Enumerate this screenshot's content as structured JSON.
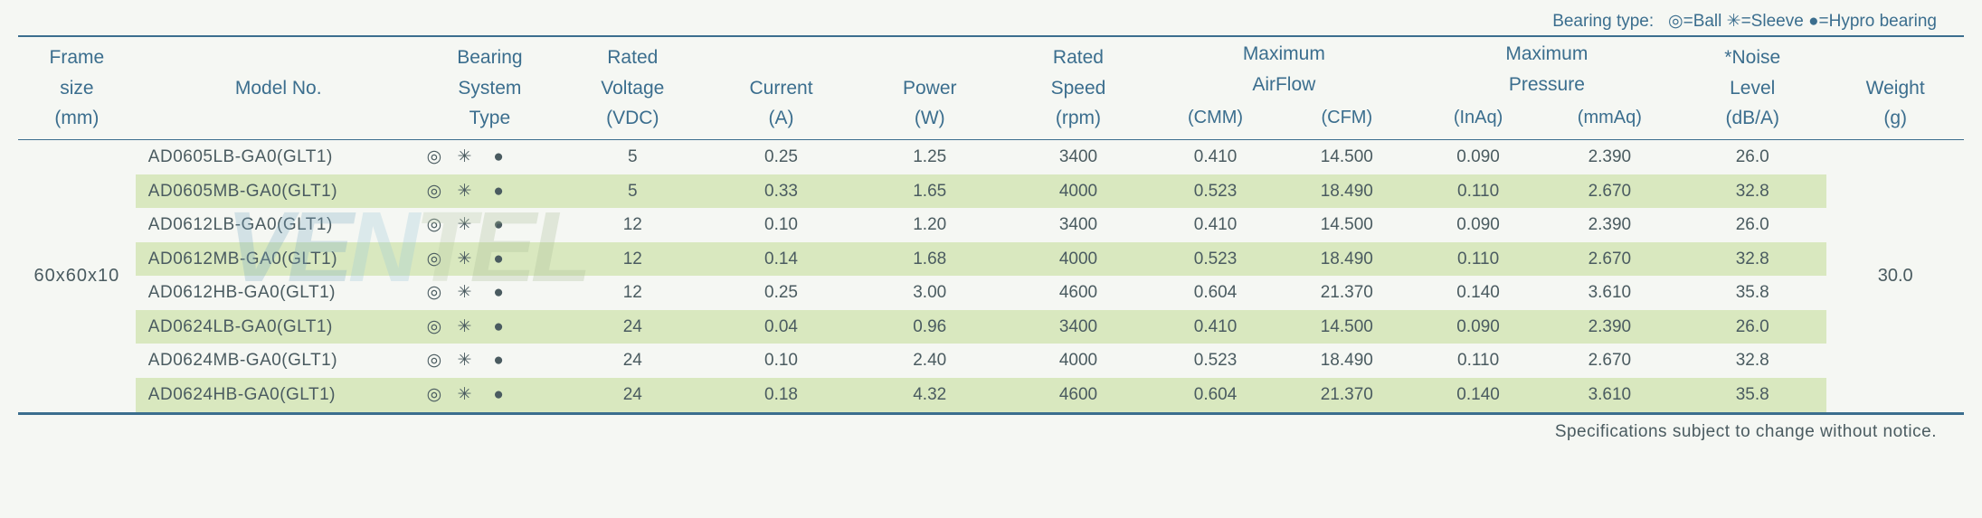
{
  "legend": {
    "prefix": "Bearing type:",
    "items": [
      {
        "symbol": "◎",
        "label": "=Ball"
      },
      {
        "symbol": "✳",
        "label": "=Sleeve"
      },
      {
        "symbol": "●",
        "label": "=Hypro bearing"
      }
    ],
    "color": "#3b6e8e"
  },
  "header": {
    "frame": {
      "l1": "Frame",
      "l2": "size",
      "l3": "(mm)"
    },
    "model": {
      "l1": "Model No."
    },
    "bearing": {
      "l1": "Bearing",
      "l2": "System",
      "l3": "Type"
    },
    "voltage": {
      "l1": "Rated",
      "l2": "Voltage",
      "l3": "(VDC)"
    },
    "current": {
      "l2": "Current",
      "l3": "(A)"
    },
    "power": {
      "l2": "Power",
      "l3": "(W)"
    },
    "speed": {
      "l1": "Rated",
      "l2": "Speed",
      "l3": "(rpm)"
    },
    "airflow": {
      "l1": "Maximum",
      "l2": "AirFlow",
      "sub1": "(CMM)",
      "sub2": "(CFM)"
    },
    "pressure": {
      "l1": "Maximum",
      "l2": "Pressure",
      "sub1": "(InAq)",
      "sub2": "(mmAq)"
    },
    "noise": {
      "l1": "*Noise",
      "l2": "Level",
      "l3": "(dB/A)"
    },
    "weight": {
      "l2": "Weight",
      "l3": "(g)"
    }
  },
  "frame_size": "60x60x10",
  "weight_value": "30.0",
  "bearing_symbols": {
    "a": "◎",
    "b": "✳",
    "c": "●"
  },
  "rows": [
    {
      "model": "AD0605LB-GA0(GLT1)",
      "volt": "5",
      "curr": "0.25",
      "power": "1.25",
      "speed": "3400",
      "cmm": "0.410",
      "cfm": "14.500",
      "inaq": "0.090",
      "mmaq": "2.390",
      "noise": "26.0"
    },
    {
      "model": "AD0605MB-GA0(GLT1)",
      "volt": "5",
      "curr": "0.33",
      "power": "1.65",
      "speed": "4000",
      "cmm": "0.523",
      "cfm": "18.490",
      "inaq": "0.110",
      "mmaq": "2.670",
      "noise": "32.8"
    },
    {
      "model": "AD0612LB-GA0(GLT1)",
      "volt": "12",
      "curr": "0.10",
      "power": "1.20",
      "speed": "3400",
      "cmm": "0.410",
      "cfm": "14.500",
      "inaq": "0.090",
      "mmaq": "2.390",
      "noise": "26.0"
    },
    {
      "model": "AD0612MB-GA0(GLT1)",
      "volt": "12",
      "curr": "0.14",
      "power": "1.68",
      "speed": "4000",
      "cmm": "0.523",
      "cfm": "18.490",
      "inaq": "0.110",
      "mmaq": "2.670",
      "noise": "32.8"
    },
    {
      "model": "AD0612HB-GA0(GLT1)",
      "volt": "12",
      "curr": "0.25",
      "power": "3.00",
      "speed": "4600",
      "cmm": "0.604",
      "cfm": "21.370",
      "inaq": "0.140",
      "mmaq": "3.610",
      "noise": "35.8"
    },
    {
      "model": "AD0624LB-GA0(GLT1)",
      "volt": "24",
      "curr": "0.04",
      "power": "0.96",
      "speed": "3400",
      "cmm": "0.410",
      "cfm": "14.500",
      "inaq": "0.090",
      "mmaq": "2.390",
      "noise": "26.0"
    },
    {
      "model": "AD0624MB-GA0(GLT1)",
      "volt": "24",
      "curr": "0.10",
      "power": "2.40",
      "speed": "4000",
      "cmm": "0.523",
      "cfm": "18.490",
      "inaq": "0.110",
      "mmaq": "2.670",
      "noise": "32.8"
    },
    {
      "model": "AD0624HB-GA0(GLT1)",
      "volt": "24",
      "curr": "0.18",
      "power": "4.32",
      "speed": "4600",
      "cmm": "0.604",
      "cfm": "21.370",
      "inaq": "0.140",
      "mmaq": "3.610",
      "noise": "35.8"
    }
  ],
  "footnote": "Specifications subject to change without notice.",
  "style": {
    "background": "#f5f7f3",
    "header_text_color": "#3b6e8e",
    "body_text_color": "#4a5b60",
    "alt_row_color": "#d9e8bf",
    "border_color": "#3b6e8e",
    "header_fontsize": 21,
    "body_fontsize": 19
  },
  "watermark": {
    "text": "VENTEL"
  }
}
